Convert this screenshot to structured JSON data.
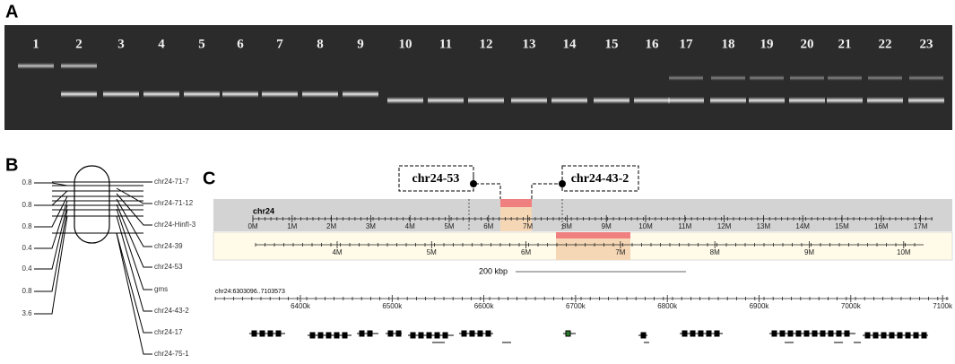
{
  "panel_a": {
    "label": "A",
    "lanes": [
      "1",
      "2",
      "3",
      "4",
      "5",
      "6",
      "7",
      "8",
      "9",
      "10",
      "11",
      "12",
      "13",
      "14",
      "15",
      "16",
      "17",
      "18",
      "19",
      "20",
      "21",
      "22",
      "23"
    ]
  },
  "panel_b": {
    "label": "B",
    "distances": [
      "0.8",
      "0.8",
      "0.8",
      "0.4",
      "0.4",
      "0.8",
      "3.6"
    ],
    "markers": [
      "chr24-71-7",
      "chr24-71-12",
      "chr24-HinfI-3",
      "chr24-39",
      "chr24-53",
      "gms",
      "chr24-43-2",
      "chr24-17",
      "chr24-75-1"
    ]
  },
  "panel_c": {
    "label": "C",
    "callouts": [
      "chr24-53",
      "chr24-43-2"
    ],
    "chromosome": "chr24",
    "overview_ticks": [
      "0M",
      "1M",
      "2M",
      "3M",
      "4M",
      "5M",
      "6M",
      "7M",
      "8M",
      "9M",
      "10M",
      "11M",
      "12M",
      "13M",
      "14M",
      "15M",
      "16M",
      "17M"
    ],
    "region_ticks": [
      "4M",
      "5M",
      "6M",
      "7M",
      "8M",
      "9M",
      "10M"
    ],
    "scale_label": "200 kbp",
    "locus": "chr24:6303096..7103573",
    "detail_ticks": [
      "6400k",
      "6500k",
      "6600k",
      "6700k",
      "6800k",
      "6900k",
      "7000k",
      "7100k"
    ]
  }
}
